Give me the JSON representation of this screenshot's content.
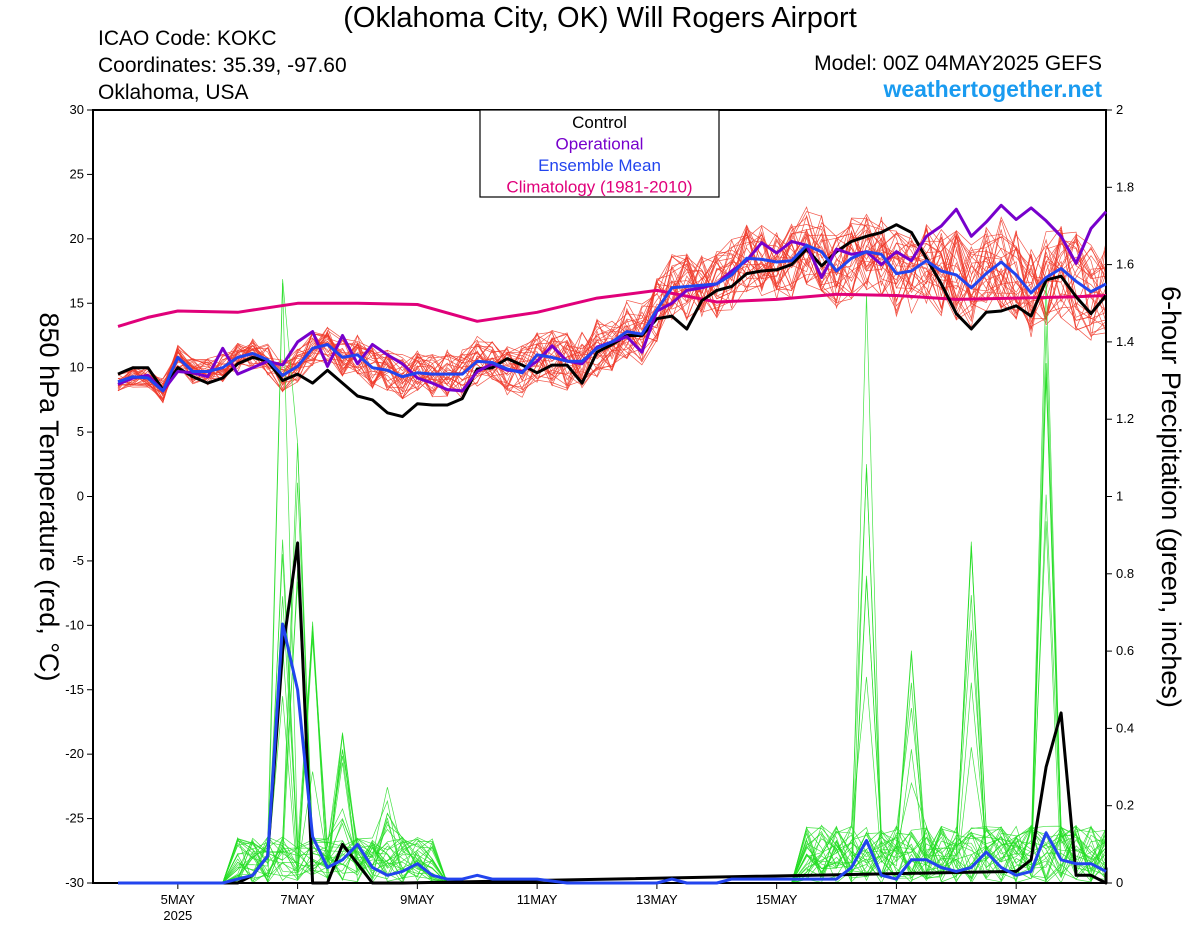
{
  "header": {
    "title": "(Oklahoma City, OK) Will Rogers Airport",
    "icao": "ICAO Code: KOKC",
    "coordinates": "Coordinates: 35.39, -97.60",
    "region": "Oklahoma, USA",
    "model": "Model: 00Z 04MAY2025 GEFS",
    "site": "weathertogether.net"
  },
  "colors": {
    "control": "#000000",
    "operational": "#7700cc",
    "ensemble_mean": "#2244ee",
    "climatology": "#e0007a",
    "members_temp": "#f03a2a",
    "members_precip": "#22dd22",
    "site": "#1a9bf0"
  },
  "chart_data": {
    "type": "line",
    "x_unit": "hours after 2025-05-04 00Z",
    "x_range": [
      0,
      384
    ],
    "x_ticks": [
      {
        "x": 24,
        "label": "5MAY",
        "sub": "2025"
      },
      {
        "x": 72,
        "label": "7MAY",
        "sub": ""
      },
      {
        "x": 120,
        "label": "9MAY",
        "sub": ""
      },
      {
        "x": 168,
        "label": "11MAY",
        "sub": ""
      },
      {
        "x": 216,
        "label": "13MAY",
        "sub": ""
      },
      {
        "x": 264,
        "label": "15MAY",
        "sub": ""
      },
      {
        "x": 312,
        "label": "17MAY",
        "sub": ""
      },
      {
        "x": 360,
        "label": "19MAY",
        "sub": ""
      }
    ],
    "y_left": {
      "label": "850 hPa Temperature (red, °C)",
      "range": [
        -30,
        30
      ],
      "ticks": [
        -30,
        -25,
        -20,
        -15,
        -10,
        -5,
        0,
        5,
        10,
        15,
        20,
        25,
        30
      ]
    },
    "y_right": {
      "label": "6-hour Precipitation (green, inches)",
      "range": [
        0,
        2
      ],
      "ticks": [
        0,
        0.2,
        0.4,
        0.6,
        0.8,
        1,
        1.2,
        1.4,
        1.6,
        1.8,
        2
      ]
    },
    "legend": {
      "placement": "top-center",
      "entries": [
        "Control",
        "Operational",
        "Ensemble Mean",
        "Climatology (1981-2010)"
      ]
    },
    "temperature": {
      "control": [
        [
          0,
          9.5
        ],
        [
          6,
          10
        ],
        [
          12,
          10
        ],
        [
          18,
          8.3
        ],
        [
          24,
          10
        ],
        [
          30,
          9.3
        ],
        [
          36,
          8.8
        ],
        [
          42,
          9.2
        ],
        [
          48,
          10.3
        ],
        [
          54,
          10.8
        ],
        [
          60,
          10.5
        ],
        [
          66,
          9
        ],
        [
          72,
          9.5
        ],
        [
          78,
          8.8
        ],
        [
          84,
          9.8
        ],
        [
          90,
          8.8
        ],
        [
          96,
          7.8
        ],
        [
          102,
          7.5
        ],
        [
          108,
          6.5
        ],
        [
          114,
          6.2
        ],
        [
          120,
          7.2
        ],
        [
          126,
          7.1
        ],
        [
          132,
          7.1
        ],
        [
          138,
          7.6
        ],
        [
          144,
          9.9
        ],
        [
          150,
          10
        ],
        [
          156,
          10.7
        ],
        [
          162,
          10.2
        ],
        [
          168,
          9.6
        ],
        [
          174,
          10.2
        ],
        [
          180,
          10.2
        ],
        [
          186,
          8.8
        ],
        [
          192,
          11.2
        ],
        [
          198,
          11.8
        ],
        [
          204,
          12.5
        ],
        [
          210,
          12.5
        ],
        [
          216,
          13.8
        ],
        [
          222,
          14
        ],
        [
          228,
          13
        ],
        [
          234,
          15.2
        ],
        [
          240,
          16
        ],
        [
          246,
          16.3
        ],
        [
          252,
          17.3
        ],
        [
          258,
          17.5
        ],
        [
          264,
          17.6
        ],
        [
          270,
          18
        ],
        [
          276,
          19.2
        ],
        [
          282,
          17.9
        ],
        [
          288,
          19
        ],
        [
          294,
          19.8
        ],
        [
          300,
          20.2
        ],
        [
          306,
          20.5
        ],
        [
          312,
          21.1
        ],
        [
          318,
          20.5
        ],
        [
          324,
          18.5
        ],
        [
          330,
          16.5
        ],
        [
          336,
          14.2
        ],
        [
          342,
          13
        ],
        [
          348,
          14.3
        ],
        [
          354,
          14.4
        ],
        [
          360,
          14.8
        ],
        [
          366,
          14
        ],
        [
          372,
          16.8
        ],
        [
          378,
          17.1
        ],
        [
          384,
          15.5
        ],
        [
          390,
          14.2
        ],
        [
          396,
          15.6
        ]
      ],
      "operational": [
        [
          0,
          8.7
        ],
        [
          6,
          9.2
        ],
        [
          12,
          9.4
        ],
        [
          18,
          8.2
        ],
        [
          24,
          9.7
        ],
        [
          30,
          9.6
        ],
        [
          36,
          9.3
        ],
        [
          42,
          11.5
        ],
        [
          48,
          9.5
        ],
        [
          54,
          10
        ],
        [
          60,
          10.5
        ],
        [
          66,
          10.2
        ],
        [
          72,
          12
        ],
        [
          78,
          12.8
        ],
        [
          84,
          10.1
        ],
        [
          90,
          12.5
        ],
        [
          96,
          10.3
        ],
        [
          102,
          11.8
        ],
        [
          108,
          11
        ],
        [
          114,
          10.3
        ],
        [
          120,
          9.2
        ],
        [
          126,
          8.8
        ],
        [
          132,
          8.3
        ],
        [
          138,
          8.2
        ],
        [
          144,
          9.7
        ],
        [
          150,
          10.3
        ],
        [
          156,
          9.8
        ],
        [
          162,
          9.7
        ],
        [
          168,
          10.5
        ],
        [
          174,
          11.7
        ],
        [
          180,
          10.5
        ],
        [
          186,
          10.3
        ],
        [
          192,
          11.6
        ],
        [
          198,
          12
        ],
        [
          204,
          12.4
        ],
        [
          210,
          11.2
        ],
        [
          216,
          14.4
        ],
        [
          222,
          15
        ],
        [
          228,
          16
        ],
        [
          234,
          16.2
        ],
        [
          240,
          16.5
        ],
        [
          246,
          17.5
        ],
        [
          252,
          18.3
        ],
        [
          258,
          19.7
        ],
        [
          264,
          18.9
        ],
        [
          270,
          19.8
        ],
        [
          276,
          19.5
        ],
        [
          282,
          17
        ],
        [
          288,
          19.2
        ],
        [
          294,
          18.8
        ],
        [
          300,
          19
        ],
        [
          306,
          18
        ],
        [
          312,
          19
        ],
        [
          318,
          18.3
        ],
        [
          324,
          20.2
        ],
        [
          330,
          21
        ],
        [
          336,
          22.3
        ],
        [
          342,
          20.2
        ],
        [
          348,
          21.3
        ],
        [
          354,
          22.6
        ],
        [
          360,
          21.5
        ],
        [
          366,
          22.4
        ],
        [
          372,
          21.4
        ],
        [
          378,
          20.2
        ],
        [
          384,
          18.1
        ],
        [
          390,
          20.8
        ],
        [
          396,
          22.1
        ]
      ],
      "ensemble_mean": [
        [
          0,
          8.9
        ],
        [
          6,
          9.3
        ],
        [
          12,
          9.2
        ],
        [
          18,
          8.2
        ],
        [
          24,
          10.8
        ],
        [
          30,
          9.7
        ],
        [
          36,
          9.7
        ],
        [
          42,
          10
        ],
        [
          48,
          10.8
        ],
        [
          54,
          11.1
        ],
        [
          60,
          10.6
        ],
        [
          66,
          9.4
        ],
        [
          72,
          10.1
        ],
        [
          78,
          11.5
        ],
        [
          84,
          11.8
        ],
        [
          90,
          10.8
        ],
        [
          96,
          11
        ],
        [
          102,
          10
        ],
        [
          108,
          9.8
        ],
        [
          114,
          9.3
        ],
        [
          120,
          9.6
        ],
        [
          126,
          9.5
        ],
        [
          132,
          9.5
        ],
        [
          138,
          9.5
        ],
        [
          144,
          10.5
        ],
        [
          150,
          10.4
        ],
        [
          156,
          9.9
        ],
        [
          162,
          9.6
        ],
        [
          168,
          11
        ],
        [
          174,
          10.8
        ],
        [
          180,
          10.5
        ],
        [
          186,
          10.5
        ],
        [
          192,
          11.5
        ],
        [
          198,
          12
        ],
        [
          204,
          12.8
        ],
        [
          210,
          12.6
        ],
        [
          216,
          14.5
        ],
        [
          222,
          16.2
        ],
        [
          228,
          16.3
        ],
        [
          234,
          16.4
        ],
        [
          240,
          16.5
        ],
        [
          246,
          17.2
        ],
        [
          252,
          18.5
        ],
        [
          258,
          18.4
        ],
        [
          264,
          18.2
        ],
        [
          270,
          18.3
        ],
        [
          276,
          19.5
        ],
        [
          282,
          19
        ],
        [
          288,
          17.5
        ],
        [
          294,
          18.5
        ],
        [
          300,
          19
        ],
        [
          306,
          18.8
        ],
        [
          312,
          17.3
        ],
        [
          318,
          17.5
        ],
        [
          324,
          18.3
        ],
        [
          330,
          17.5
        ],
        [
          336,
          17.2
        ],
        [
          342,
          16.2
        ],
        [
          348,
          17.3
        ],
        [
          354,
          18.2
        ],
        [
          360,
          17.2
        ],
        [
          366,
          15.8
        ],
        [
          372,
          17
        ],
        [
          378,
          17.7
        ],
        [
          384,
          16.7
        ],
        [
          390,
          15.9
        ],
        [
          396,
          16.5
        ]
      ],
      "climatology": [
        [
          0,
          13.2
        ],
        [
          12,
          13.9
        ],
        [
          24,
          14.4
        ],
        [
          48,
          14.3
        ],
        [
          72,
          15
        ],
        [
          96,
          15
        ],
        [
          120,
          14.9
        ],
        [
          144,
          13.6
        ],
        [
          168,
          14.3
        ],
        [
          192,
          15.4
        ],
        [
          216,
          16
        ],
        [
          240,
          15.1
        ],
        [
          264,
          15.3
        ],
        [
          288,
          15.7
        ],
        [
          312,
          15.6
        ],
        [
          336,
          15.3
        ],
        [
          360,
          15.4
        ],
        [
          384,
          15.5
        ],
        [
          396,
          15.6
        ]
      ]
    },
    "precipitation": {
      "control": [
        [
          0,
          0
        ],
        [
          48,
          0
        ],
        [
          54,
          0.02
        ],
        [
          60,
          0.07
        ],
        [
          66,
          0.6
        ],
        [
          72,
          0.88
        ],
        [
          78,
          0
        ],
        [
          84,
          0
        ],
        [
          90,
          0.1
        ],
        [
          96,
          0.05
        ],
        [
          102,
          0
        ],
        [
          108,
          0
        ],
        [
          114,
          0
        ],
        [
          396,
          0
        ],
        [
          360,
          0.03
        ],
        [
          366,
          0.06
        ],
        [
          372,
          0.3
        ],
        [
          378,
          0.44
        ],
        [
          384,
          0.02
        ],
        [
          390,
          0.02
        ],
        [
          396,
          0.04
        ]
      ],
      "ensemble_mean": [
        [
          0,
          0
        ],
        [
          42,
          0
        ],
        [
          48,
          0.01
        ],
        [
          54,
          0.02
        ],
        [
          60,
          0.07
        ],
        [
          66,
          0.67
        ],
        [
          72,
          0.5
        ],
        [
          78,
          0.12
        ],
        [
          84,
          0.04
        ],
        [
          90,
          0.06
        ],
        [
          96,
          0.1
        ],
        [
          102,
          0.04
        ],
        [
          108,
          0.02
        ],
        [
          114,
          0.03
        ],
        [
          120,
          0.05
        ],
        [
          126,
          0.02
        ],
        [
          132,
          0.01
        ],
        [
          138,
          0.01
        ],
        [
          144,
          0.02
        ],
        [
          150,
          0.01
        ],
        [
          168,
          0.01
        ],
        [
          180,
          0
        ],
        [
          216,
          0
        ],
        [
          222,
          0.01
        ],
        [
          228,
          0
        ],
        [
          240,
          0
        ],
        [
          246,
          0.01
        ],
        [
          288,
          0.01
        ],
        [
          294,
          0.04
        ],
        [
          300,
          0.11
        ],
        [
          306,
          0.02
        ],
        [
          312,
          0.01
        ],
        [
          318,
          0.06
        ],
        [
          324,
          0.06
        ],
        [
          330,
          0.04
        ],
        [
          336,
          0.03
        ],
        [
          342,
          0.04
        ],
        [
          348,
          0.08
        ],
        [
          354,
          0.04
        ],
        [
          360,
          0.02
        ],
        [
          366,
          0.03
        ],
        [
          372,
          0.13
        ],
        [
          378,
          0.06
        ],
        [
          384,
          0.05
        ],
        [
          390,
          0.05
        ],
        [
          396,
          0.03
        ]
      ]
    }
  }
}
